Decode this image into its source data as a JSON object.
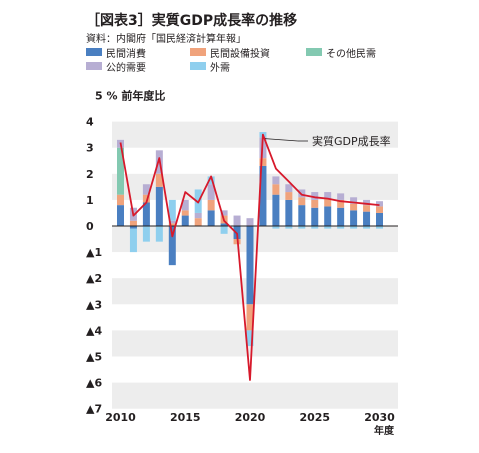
{
  "header": {
    "title": "［図表3］実質GDP成長率の推移",
    "source": "資料：内閣府「国民経済計算年報」"
  },
  "colors": {
    "consumption": "#4a7fc1",
    "investment": "#f0a37c",
    "other": "#83c9b1",
    "public": "#b7aed3",
    "external": "#8fcfee",
    "gdp_line": "#d7192b",
    "band": "#ededed",
    "zero_line": "#231f20"
  },
  "chart_data": {
    "type": "bar",
    "unit_label": "5 % 前年度比",
    "xlabel": "年度",
    "x": [
      2010,
      2011,
      2012,
      2013,
      2014,
      2015,
      2016,
      2017,
      2018,
      2019,
      2020,
      2021,
      2022,
      2023,
      2024,
      2025,
      2026,
      2027,
      2028,
      2029,
      2030
    ],
    "ylim": [
      -7,
      5
    ],
    "yticks": [
      4,
      3,
      2,
      1,
      0,
      -1,
      -2,
      -3,
      -4,
      -5,
      -6,
      -7
    ],
    "ytick_labels": [
      "4",
      "3",
      "2",
      "1",
      "0",
      "▲1",
      "▲2",
      "▲3",
      "▲4",
      "▲5",
      "▲6",
      "▲7"
    ],
    "xticks": [
      2010,
      2015,
      2020,
      2025,
      2030
    ],
    "xtick_labels": [
      "2010",
      "2015",
      "2020",
      "2025",
      "2030"
    ],
    "series": [
      {
        "name": "民間消費",
        "color_key": "consumption",
        "values": [
          0.8,
          -0.1,
          0.9,
          1.5,
          -1.5,
          0.4,
          0.0,
          0.6,
          0.1,
          -0.5,
          -3.0,
          2.3,
          1.2,
          1.0,
          0.8,
          0.7,
          0.75,
          0.7,
          0.6,
          0.55,
          0.5
        ]
      },
      {
        "name": "民間設備投資",
        "color_key": "investment",
        "values": [
          0.4,
          0.2,
          0.3,
          0.5,
          0.1,
          0.2,
          0.3,
          0.4,
          0.3,
          -0.2,
          -1.0,
          0.3,
          0.4,
          0.3,
          0.3,
          0.3,
          0.3,
          0.3,
          0.25,
          0.25,
          0.25
        ]
      },
      {
        "name": "その他民需",
        "color_key": "other",
        "values": [
          1.8,
          0.0,
          0.0,
          0.0,
          0.0,
          0.0,
          0.0,
          0.0,
          0.0,
          0.0,
          0.0,
          0.0,
          0.0,
          0.0,
          0.0,
          0.0,
          0.0,
          0.0,
          0.0,
          0.0,
          0.0
        ]
      },
      {
        "name": "公的需要",
        "color_key": "public",
        "values": [
          0.3,
          0.5,
          0.4,
          0.9,
          0.1,
          0.4,
          0.2,
          0.6,
          0.2,
          0.4,
          0.3,
          0.8,
          0.3,
          0.3,
          0.3,
          0.3,
          0.25,
          0.25,
          0.25,
          0.2,
          0.2
        ]
      },
      {
        "name": "外需",
        "color_key": "external",
        "values": [
          0.0,
          -0.9,
          -0.6,
          -0.6,
          0.8,
          0.0,
          0.9,
          0.3,
          -0.3,
          0.0,
          -0.6,
          0.2,
          -0.1,
          -0.1,
          -0.1,
          -0.1,
          -0.1,
          -0.1,
          -0.1,
          -0.1,
          -0.1
        ]
      }
    ],
    "line": {
      "name": "実質GDP成長率",
      "label": "実質GDP成長率",
      "values": [
        3.2,
        0.4,
        0.9,
        2.6,
        -0.4,
        1.3,
        0.9,
        1.9,
        0.2,
        -0.3,
        -5.9,
        3.5,
        2.2,
        1.7,
        1.2,
        1.1,
        1.05,
        0.95,
        0.9,
        0.85,
        0.8
      ]
    },
    "grid": "horizontal bands",
    "legend": "top-left"
  }
}
